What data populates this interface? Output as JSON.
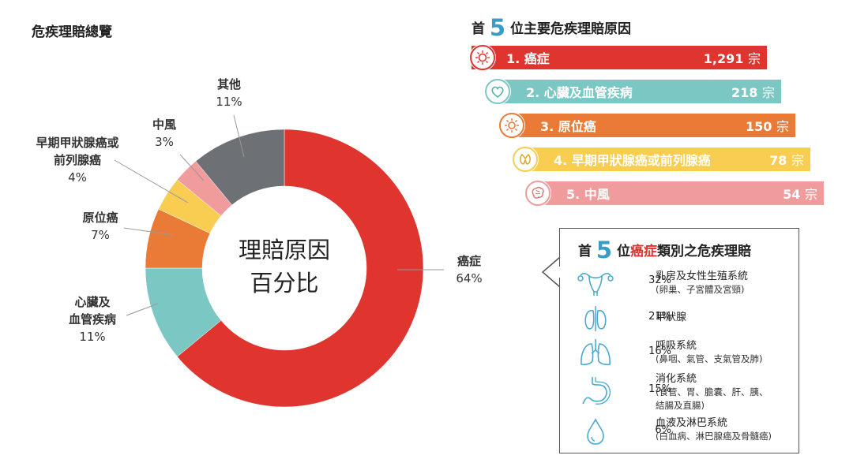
{
  "page_title": "危疾理賠總覽",
  "chart_data": {
    "type": "pie",
    "center_label": [
      "理賠原因",
      "百分比"
    ],
    "slices": [
      {
        "label": "癌症",
        "value": 64,
        "pct_text": "64%",
        "color": "#e0342f"
      },
      {
        "label": "心臟及血管疾病",
        "value": 11,
        "pct_text": "11%",
        "color": "#7bc7c3"
      },
      {
        "label": "原位癌",
        "value": 7,
        "pct_text": "7%",
        "color": "#ea7b36"
      },
      {
        "label": "早期甲狀腺癌或前列腺癌",
        "value": 4,
        "pct_text": "4%",
        "color": "#f8cd52"
      },
      {
        "label": "中風",
        "value": 3,
        "pct_text": "3%",
        "color": "#f09c9c"
      },
      {
        "label": "其他",
        "value": 11,
        "pct_text": "11%",
        "color": "#6d7074"
      }
    ]
  },
  "labels": {
    "cancer": {
      "line1": "癌症",
      "pct": "64%"
    },
    "heart": {
      "line1": "心臟及",
      "line2": "血管疾病",
      "pct": "11%"
    },
    "insitu": {
      "line1": "原位癌",
      "pct": "7%"
    },
    "thyroid": {
      "line1": "早期甲狀腺癌或",
      "line2": "前列腺癌",
      "pct": "4%"
    },
    "stroke": {
      "line1": "中風",
      "pct": "3%"
    },
    "other": {
      "line1": "其他",
      "pct": "11%"
    }
  },
  "top5": {
    "title_pre": "首",
    "title_num": "5",
    "title_post": "位主要危疾理賠原因",
    "unit": "宗",
    "items": [
      {
        "name": "1. 癌症",
        "count": "1,291",
        "color": "#e0342f",
        "icon": "cancer-cell-icon"
      },
      {
        "name": "2. 心臟及血管疾病",
        "count": "218",
        "color": "#7bc7c3",
        "icon": "heart-icon"
      },
      {
        "name": "3. 原位癌",
        "count": "150",
        "color": "#ea7b36",
        "icon": "cell-burst-icon"
      },
      {
        "name": "4. 早期甲狀腺癌或前列腺癌",
        "count": "78",
        "color": "#f8cd52",
        "icon": "thyroid-icon"
      },
      {
        "name": "5. 中風",
        "count": "54",
        "color": "#f09c9c",
        "icon": "brain-icon"
      }
    ]
  },
  "cancer_types": {
    "title_pre": "首",
    "title_num": "5",
    "title_mid": "位",
    "title_red": "癌症",
    "title_post": "類別之危疾理賠",
    "icon_color": "#4aa9cf",
    "items": [
      {
        "pct": "32%",
        "name": "乳房及女性生殖系統",
        "sub": "(卵巢、子宮體及宮頸)",
        "icon": "uterus-icon"
      },
      {
        "pct": "21%",
        "name": "甲狀腺",
        "sub": "",
        "icon": "thyroid-gland-icon"
      },
      {
        "pct": "16%",
        "name": "呼吸系統",
        "sub": "(鼻咽、氣管、支氣管及肺)",
        "icon": "lungs-icon"
      },
      {
        "pct": "15%",
        "name": "消化系統",
        "sub": "(食管、胃、膽囊、肝、胰、",
        "sub2": "結腸及直腸)",
        "icon": "stomach-icon"
      },
      {
        "pct": "6%",
        "name": "血液及淋巴系統",
        "sub": "(白血病、淋巴腺癌及骨髓癌)",
        "icon": "blood-drop-icon"
      }
    ]
  }
}
